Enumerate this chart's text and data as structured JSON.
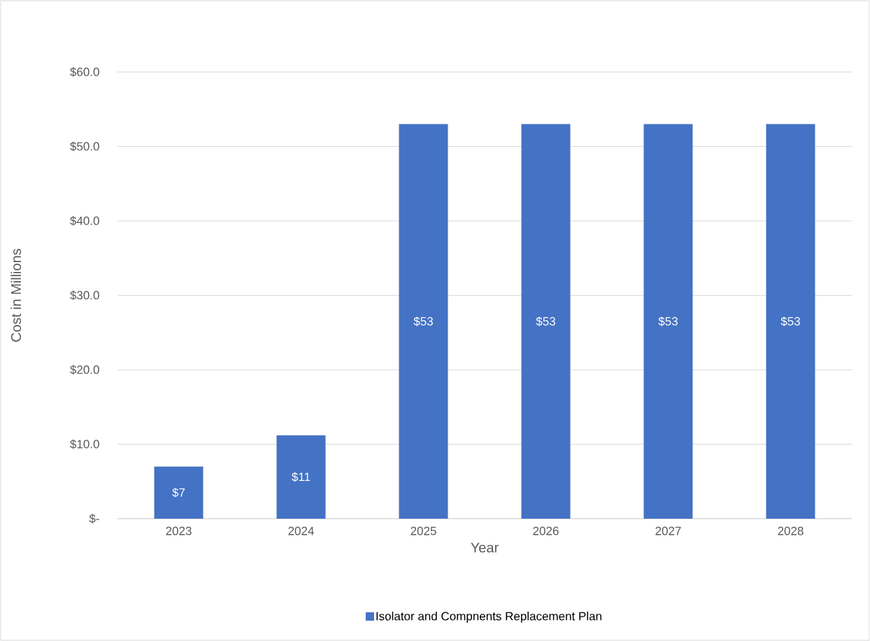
{
  "chart_data": {
    "type": "bar",
    "xlabel": "Year",
    "ylabel": "Cost in Millions",
    "categories": [
      "2023",
      "2024",
      "2025",
      "2026",
      "2027",
      "2028"
    ],
    "series": [
      {
        "name": "Isolator and Compnents Replacement Plan",
        "color": "#4472c4",
        "values": [
          7,
          11.2,
          53,
          53,
          53,
          53
        ],
        "value_labels": [
          "$7",
          "$11",
          "$53",
          "$53",
          "$53",
          "$53"
        ]
      }
    ],
    "ylim": [
      0,
      60
    ],
    "yticks": [
      {
        "value": 0,
        "label": "$-"
      },
      {
        "value": 10,
        "label": "$10.0"
      },
      {
        "value": 20,
        "label": "$20.0"
      },
      {
        "value": 30,
        "label": "$30.0"
      },
      {
        "value": 40,
        "label": "$40.0"
      },
      {
        "value": 50,
        "label": "$50.0"
      },
      {
        "value": 60,
        "label": "$60.0"
      }
    ],
    "grid": "y",
    "legend": "bottom"
  }
}
